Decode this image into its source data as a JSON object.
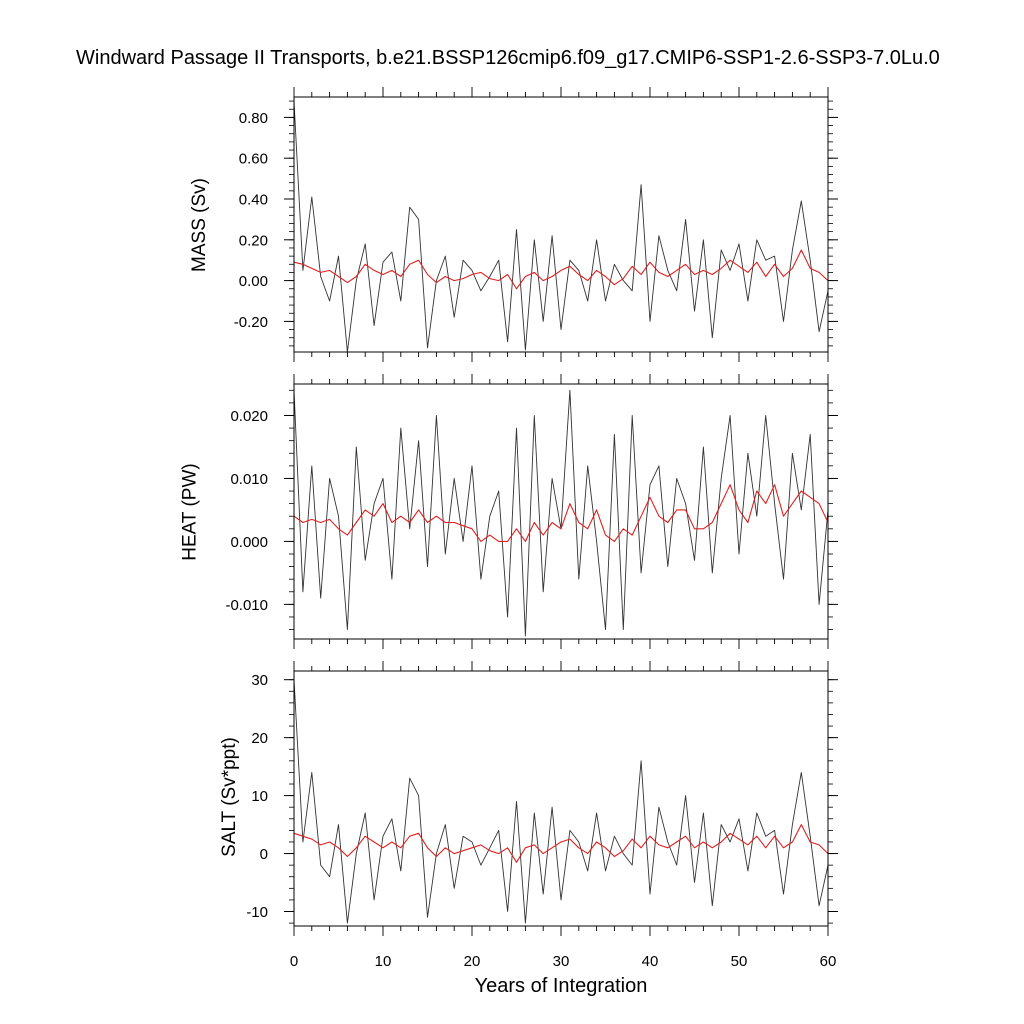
{
  "title": "Windward Passage II Transports, b.e21.BSSP126cmip6.f09_g17.CMIP6-SSP1-2.6-SSP3-7.0Lu.0",
  "chart_data": {
    "type": "line",
    "xlabel": "Years of Integration",
    "xlim": [
      0,
      60
    ],
    "xticks": [
      0,
      10,
      20,
      30,
      40,
      50,
      60
    ],
    "xtick_labels": [
      "0",
      "10",
      "20",
      "30",
      "40",
      "50",
      "60"
    ],
    "panels": [
      {
        "ylabel": "MASS (Sv)",
        "ylim": [
          -0.35,
          0.9
        ],
        "yticks": [
          -0.2,
          0,
          0.2,
          0.4,
          0.6,
          0.8
        ],
        "ytick_labels": [
          "-0.20",
          "0.00",
          "0.20",
          "0.40",
          "0.60",
          "0.80"
        ],
        "series": [
          {
            "color": "#333333",
            "style": "monthly",
            "x": [
              0,
              1,
              2,
              3,
              4,
              5,
              6,
              7,
              8,
              9,
              10,
              11,
              12,
              13,
              14,
              15,
              16,
              17,
              18,
              19,
              20,
              21,
              22,
              23,
              24,
              25,
              26,
              27,
              28,
              29,
              30,
              31,
              32,
              33,
              34,
              35,
              36,
              37,
              38,
              39,
              40,
              41,
              42,
              43,
              44,
              45,
              46,
              47,
              48,
              49,
              50,
              51,
              52,
              53,
              54,
              55,
              56,
              57,
              58,
              59,
              60
            ],
            "y": [
              0.88,
              0.05,
              0.41,
              0.02,
              -0.1,
              0.12,
              -0.35,
              0.0,
              0.18,
              -0.22,
              0.09,
              0.14,
              -0.1,
              0.36,
              0.3,
              -0.33,
              0.0,
              0.12,
              -0.18,
              0.1,
              0.05,
              -0.05,
              0.02,
              0.1,
              -0.3,
              0.25,
              -0.34,
              0.2,
              -0.2,
              0.22,
              -0.24,
              0.1,
              0.05,
              -0.1,
              0.2,
              -0.1,
              0.08,
              0.0,
              -0.05,
              0.47,
              -0.2,
              0.22,
              0.05,
              -0.05,
              0.3,
              -0.15,
              0.2,
              -0.28,
              0.15,
              0.05,
              0.18,
              -0.1,
              0.2,
              0.1,
              0.12,
              -0.2,
              0.15,
              0.39,
              0.1,
              -0.25,
              -0.05
            ]
          },
          {
            "color": "#e02020",
            "style": "annual-mean",
            "x": [
              0,
              1,
              2,
              3,
              4,
              5,
              6,
              7,
              8,
              9,
              10,
              11,
              12,
              13,
              14,
              15,
              16,
              17,
              18,
              19,
              20,
              21,
              22,
              23,
              24,
              25,
              26,
              27,
              28,
              29,
              30,
              31,
              32,
              33,
              34,
              35,
              36,
              37,
              38,
              39,
              40,
              41,
              42,
              43,
              44,
              45,
              46,
              47,
              48,
              49,
              50,
              51,
              52,
              53,
              54,
              55,
              56,
              57,
              58,
              59,
              60
            ],
            "y": [
              0.09,
              0.08,
              0.06,
              0.04,
              0.05,
              0.02,
              -0.01,
              0.02,
              0.08,
              0.05,
              0.03,
              0.05,
              0.02,
              0.08,
              0.1,
              0.03,
              -0.01,
              0.02,
              0.0,
              0.01,
              0.03,
              0.04,
              0.01,
              0.0,
              0.03,
              -0.04,
              0.02,
              0.04,
              0.0,
              0.02,
              0.05,
              0.07,
              0.03,
              0.0,
              0.05,
              0.02,
              -0.02,
              0.01,
              0.07,
              0.03,
              0.09,
              0.04,
              0.02,
              0.05,
              0.08,
              0.03,
              0.05,
              0.03,
              0.06,
              0.1,
              0.07,
              0.04,
              0.09,
              0.02,
              0.08,
              0.02,
              0.06,
              0.15,
              0.06,
              0.04,
              0.0
            ]
          }
        ]
      },
      {
        "ylabel": "HEAT (PW)",
        "ylim": [
          -0.0155,
          0.025
        ],
        "yticks": [
          -0.01,
          0,
          0.01,
          0.02
        ],
        "ytick_labels": [
          "-0.010",
          "0.000",
          "0.010",
          "0.020"
        ],
        "series": [
          {
            "color": "#333333",
            "style": "monthly",
            "x": [
              0,
              1,
              2,
              3,
              4,
              5,
              6,
              7,
              8,
              9,
              10,
              11,
              12,
              13,
              14,
              15,
              16,
              17,
              18,
              19,
              20,
              21,
              22,
              23,
              24,
              25,
              26,
              27,
              28,
              29,
              30,
              31,
              32,
              33,
              34,
              35,
              36,
              37,
              38,
              39,
              40,
              41,
              42,
              43,
              44,
              45,
              46,
              47,
              48,
              49,
              50,
              51,
              52,
              53,
              54,
              55,
              56,
              57,
              58,
              59,
              60
            ],
            "y": [
              0.024,
              -0.008,
              0.012,
              -0.009,
              0.01,
              0.004,
              -0.014,
              0.015,
              -0.003,
              0.006,
              0.01,
              -0.006,
              0.018,
              0.002,
              0.016,
              -0.004,
              0.02,
              -0.002,
              0.01,
              0.0,
              0.012,
              -0.006,
              0.004,
              0.008,
              -0.012,
              0.018,
              -0.015,
              0.02,
              -0.008,
              0.01,
              0.002,
              0.024,
              -0.006,
              0.012,
              0.0,
              -0.014,
              0.017,
              -0.014,
              0.02,
              -0.005,
              0.009,
              0.012,
              -0.004,
              0.01,
              0.006,
              -0.003,
              0.015,
              -0.005,
              0.01,
              0.02,
              -0.002,
              0.014,
              0.004,
              0.02,
              0.006,
              -0.006,
              0.014,
              0.005,
              0.017,
              -0.01,
              0.005
            ]
          },
          {
            "color": "#e02020",
            "style": "annual-mean",
            "x": [
              0,
              1,
              2,
              3,
              4,
              5,
              6,
              7,
              8,
              9,
              10,
              11,
              12,
              13,
              14,
              15,
              16,
              17,
              18,
              19,
              20,
              21,
              22,
              23,
              24,
              25,
              26,
              27,
              28,
              29,
              30,
              31,
              32,
              33,
              34,
              35,
              36,
              37,
              38,
              39,
              40,
              41,
              42,
              43,
              44,
              45,
              46,
              47,
              48,
              49,
              50,
              51,
              52,
              53,
              54,
              55,
              56,
              57,
              58,
              59,
              60
            ],
            "y": [
              0.004,
              0.003,
              0.0035,
              0.003,
              0.0035,
              0.002,
              0.001,
              0.003,
              0.005,
              0.004,
              0.006,
              0.003,
              0.004,
              0.003,
              0.005,
              0.003,
              0.004,
              0.003,
              0.003,
              0.0025,
              0.002,
              0.0,
              0.001,
              0.0,
              0.0,
              0.002,
              0.0,
              0.003,
              0.001,
              0.003,
              0.002,
              0.006,
              0.003,
              0.002,
              0.005,
              0.001,
              0.0,
              0.002,
              0.001,
              0.004,
              0.007,
              0.004,
              0.003,
              0.005,
              0.005,
              0.002,
              0.002,
              0.003,
              0.006,
              0.009,
              0.005,
              0.003,
              0.008,
              0.006,
              0.009,
              0.004,
              0.006,
              0.008,
              0.007,
              0.006,
              0.003
            ]
          }
        ]
      },
      {
        "ylabel": "SALT (Sv*ppt)",
        "ylim": [
          -12.5,
          31.5
        ],
        "yticks": [
          -10,
          0,
          10,
          20,
          30
        ],
        "ytick_labels": [
          "-10",
          "0",
          "10",
          "20",
          "30"
        ],
        "series": [
          {
            "color": "#333333",
            "style": "monthly",
            "x": [
              0,
              1,
              2,
              3,
              4,
              5,
              6,
              7,
              8,
              9,
              10,
              11,
              12,
              13,
              14,
              15,
              16,
              17,
              18,
              19,
              20,
              21,
              22,
              23,
              24,
              25,
              26,
              27,
              28,
              29,
              30,
              31,
              32,
              33,
              34,
              35,
              36,
              37,
              38,
              39,
              40,
              41,
              42,
              43,
              44,
              45,
              46,
              47,
              48,
              49,
              50,
              51,
              52,
              53,
              54,
              55,
              56,
              57,
              58,
              59,
              60
            ],
            "y": [
              30.0,
              2.0,
              14.0,
              -2.0,
              -4.0,
              5.0,
              -12.0,
              0.0,
              7.0,
              -8.0,
              3.0,
              6.0,
              -3.0,
              13.0,
              10.0,
              -11.0,
              0.0,
              5.0,
              -6.0,
              3.0,
              2.0,
              -2.0,
              1.0,
              4.0,
              -10.0,
              9.0,
              -12.0,
              7.0,
              -7.0,
              8.0,
              -8.0,
              4.0,
              2.0,
              -3.0,
              7.0,
              -3.0,
              3.0,
              0.0,
              -2.0,
              16.0,
              -7.0,
              8.0,
              2.0,
              -2.0,
              10.0,
              -5.0,
              7.0,
              -9.0,
              5.0,
              2.0,
              6.0,
              -3.0,
              7.0,
              3.0,
              4.0,
              -7.0,
              5.0,
              14.0,
              3.0,
              -9.0,
              -2.0
            ]
          },
          {
            "color": "#e02020",
            "style": "annual-mean",
            "x": [
              0,
              1,
              2,
              3,
              4,
              5,
              6,
              7,
              8,
              9,
              10,
              11,
              12,
              13,
              14,
              15,
              16,
              17,
              18,
              19,
              20,
              21,
              22,
              23,
              24,
              25,
              26,
              27,
              28,
              29,
              30,
              31,
              32,
              33,
              34,
              35,
              36,
              37,
              38,
              39,
              40,
              41,
              42,
              43,
              44,
              45,
              46,
              47,
              48,
              49,
              50,
              51,
              52,
              53,
              54,
              55,
              56,
              57,
              58,
              59,
              60
            ],
            "y": [
              3.5,
              3.0,
              2.5,
              1.5,
              2.0,
              1.0,
              -0.5,
              1.0,
              3.0,
              2.0,
              1.0,
              2.0,
              1.0,
              3.0,
              3.5,
              1.0,
              -0.5,
              1.0,
              0.0,
              0.5,
              1.0,
              1.5,
              0.5,
              0.0,
              1.0,
              -1.5,
              1.0,
              1.5,
              0.0,
              1.0,
              2.0,
              2.5,
              1.0,
              0.0,
              2.0,
              1.0,
              -0.5,
              0.5,
              2.5,
              1.0,
              3.0,
              1.5,
              1.0,
              2.0,
              3.0,
              1.0,
              2.0,
              1.0,
              2.0,
              3.5,
              2.5,
              1.5,
              3.0,
              1.0,
              3.0,
              1.0,
              2.0,
              5.0,
              2.0,
              1.5,
              0.0
            ]
          }
        ]
      }
    ]
  }
}
